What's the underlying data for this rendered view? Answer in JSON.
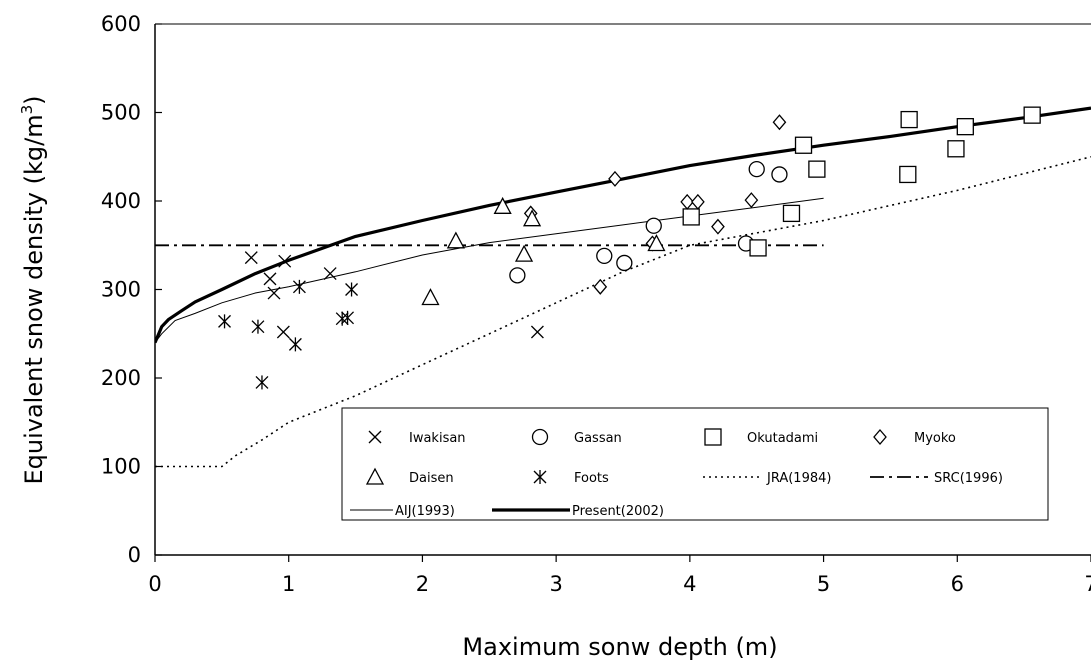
{
  "chart_data": {
    "type": "scatter",
    "xlabel": "Maximum sonw depth (m)",
    "ylabel_main": "Equivalent snow density (kg/m",
    "ylabel_sup": "3",
    "ylabel_close": ")",
    "xlim": [
      0,
      7
    ],
    "ylim": [
      0,
      600
    ],
    "xticks": [
      0,
      1,
      2,
      3,
      4,
      5,
      6,
      7
    ],
    "yticks": [
      0,
      100,
      200,
      300,
      400,
      500,
      600
    ],
    "grid": false,
    "legend_position": "bottom-right",
    "series": [
      {
        "name": "Iwakisan",
        "marker": "x",
        "points": [
          [
            0.72,
            336
          ],
          [
            0.86,
            312
          ],
          [
            0.97,
            332
          ],
          [
            0.89,
            296
          ],
          [
            0.96,
            252
          ],
          [
            1.31,
            318
          ],
          [
            2.86,
            252
          ]
        ]
      },
      {
        "name": "Gassan",
        "marker": "circle",
        "points": [
          [
            2.71,
            316
          ],
          [
            3.36,
            338
          ],
          [
            3.51,
            330
          ],
          [
            3.73,
            372
          ],
          [
            4.5,
            436
          ],
          [
            4.67,
            430
          ],
          [
            4.42,
            352
          ]
        ]
      },
      {
        "name": "Okutadami",
        "marker": "square",
        "points": [
          [
            4.01,
            382
          ],
          [
            4.51,
            347
          ],
          [
            4.76,
            386
          ],
          [
            4.85,
            463
          ],
          [
            4.95,
            436
          ],
          [
            5.63,
            430
          ],
          [
            5.64,
            492
          ],
          [
            6.06,
            484
          ],
          [
            5.99,
            459
          ],
          [
            6.56,
            497
          ]
        ]
      },
      {
        "name": "Myoko",
        "marker": "diamond",
        "points": [
          [
            2.81,
            386
          ],
          [
            3.44,
            425
          ],
          [
            3.33,
            303
          ],
          [
            3.72,
            352
          ],
          [
            3.98,
            399
          ],
          [
            4.06,
            399
          ],
          [
            4.21,
            371
          ],
          [
            4.46,
            401
          ],
          [
            4.67,
            489
          ]
        ]
      },
      {
        "name": "Daisen",
        "marker": "triangle",
        "points": [
          [
            2.06,
            291
          ],
          [
            2.25,
            355
          ],
          [
            2.6,
            394
          ],
          [
            2.76,
            340
          ],
          [
            2.82,
            380
          ],
          [
            3.75,
            352
          ]
        ]
      },
      {
        "name": "Foots",
        "marker": "asterisk",
        "points": [
          [
            0.52,
            264
          ],
          [
            0.77,
            258
          ],
          [
            0.8,
            195
          ],
          [
            1.05,
            238
          ],
          [
            1.08,
            303
          ],
          [
            1.4,
            267
          ],
          [
            1.44,
            268
          ],
          [
            1.47,
            300
          ]
        ]
      }
    ],
    "lines": [
      {
        "name": "JRA(1984)",
        "style": "dotted",
        "points": [
          [
            0,
            100
          ],
          [
            0.5,
            100
          ],
          [
            0.6,
            112
          ],
          [
            0.8,
            130
          ],
          [
            1,
            150
          ],
          [
            1.5,
            180
          ],
          [
            2,
            215
          ],
          [
            2.5,
            250
          ],
          [
            3,
            285
          ],
          [
            3.5,
            320
          ],
          [
            4,
            350
          ],
          [
            5,
            378
          ],
          [
            6,
            412
          ],
          [
            7,
            450
          ]
        ]
      },
      {
        "name": "SRC(1996)",
        "style": "dashdot",
        "points": [
          [
            0,
            350
          ],
          [
            5,
            350
          ]
        ]
      },
      {
        "name": "AIJ(1993)",
        "style": "thin",
        "points": [
          [
            0,
            240
          ],
          [
            0.05,
            250
          ],
          [
            0.15,
            265
          ],
          [
            0.3,
            273
          ],
          [
            0.5,
            285
          ],
          [
            0.75,
            296
          ],
          [
            1,
            303
          ],
          [
            1.5,
            320
          ],
          [
            2,
            339
          ],
          [
            2.5,
            353
          ],
          [
            3,
            363
          ],
          [
            3.5,
            373
          ],
          [
            4,
            383
          ],
          [
            4.5,
            393
          ],
          [
            5,
            403
          ]
        ]
      },
      {
        "name": "Present(2002)",
        "style": "thick",
        "points": [
          [
            0,
            240
          ],
          [
            0.05,
            258
          ],
          [
            0.1,
            266
          ],
          [
            0.2,
            276
          ],
          [
            0.3,
            286
          ],
          [
            0.5,
            300
          ],
          [
            0.75,
            318
          ],
          [
            1,
            333
          ],
          [
            1.5,
            360
          ],
          [
            2,
            378
          ],
          [
            2.5,
            395
          ],
          [
            3,
            410
          ],
          [
            3.5,
            425
          ],
          [
            4,
            440
          ],
          [
            4.5,
            452
          ],
          [
            5,
            463
          ],
          [
            5.5,
            473
          ],
          [
            6,
            484
          ],
          [
            6.5,
            494
          ],
          [
            7,
            505
          ]
        ]
      }
    ]
  }
}
